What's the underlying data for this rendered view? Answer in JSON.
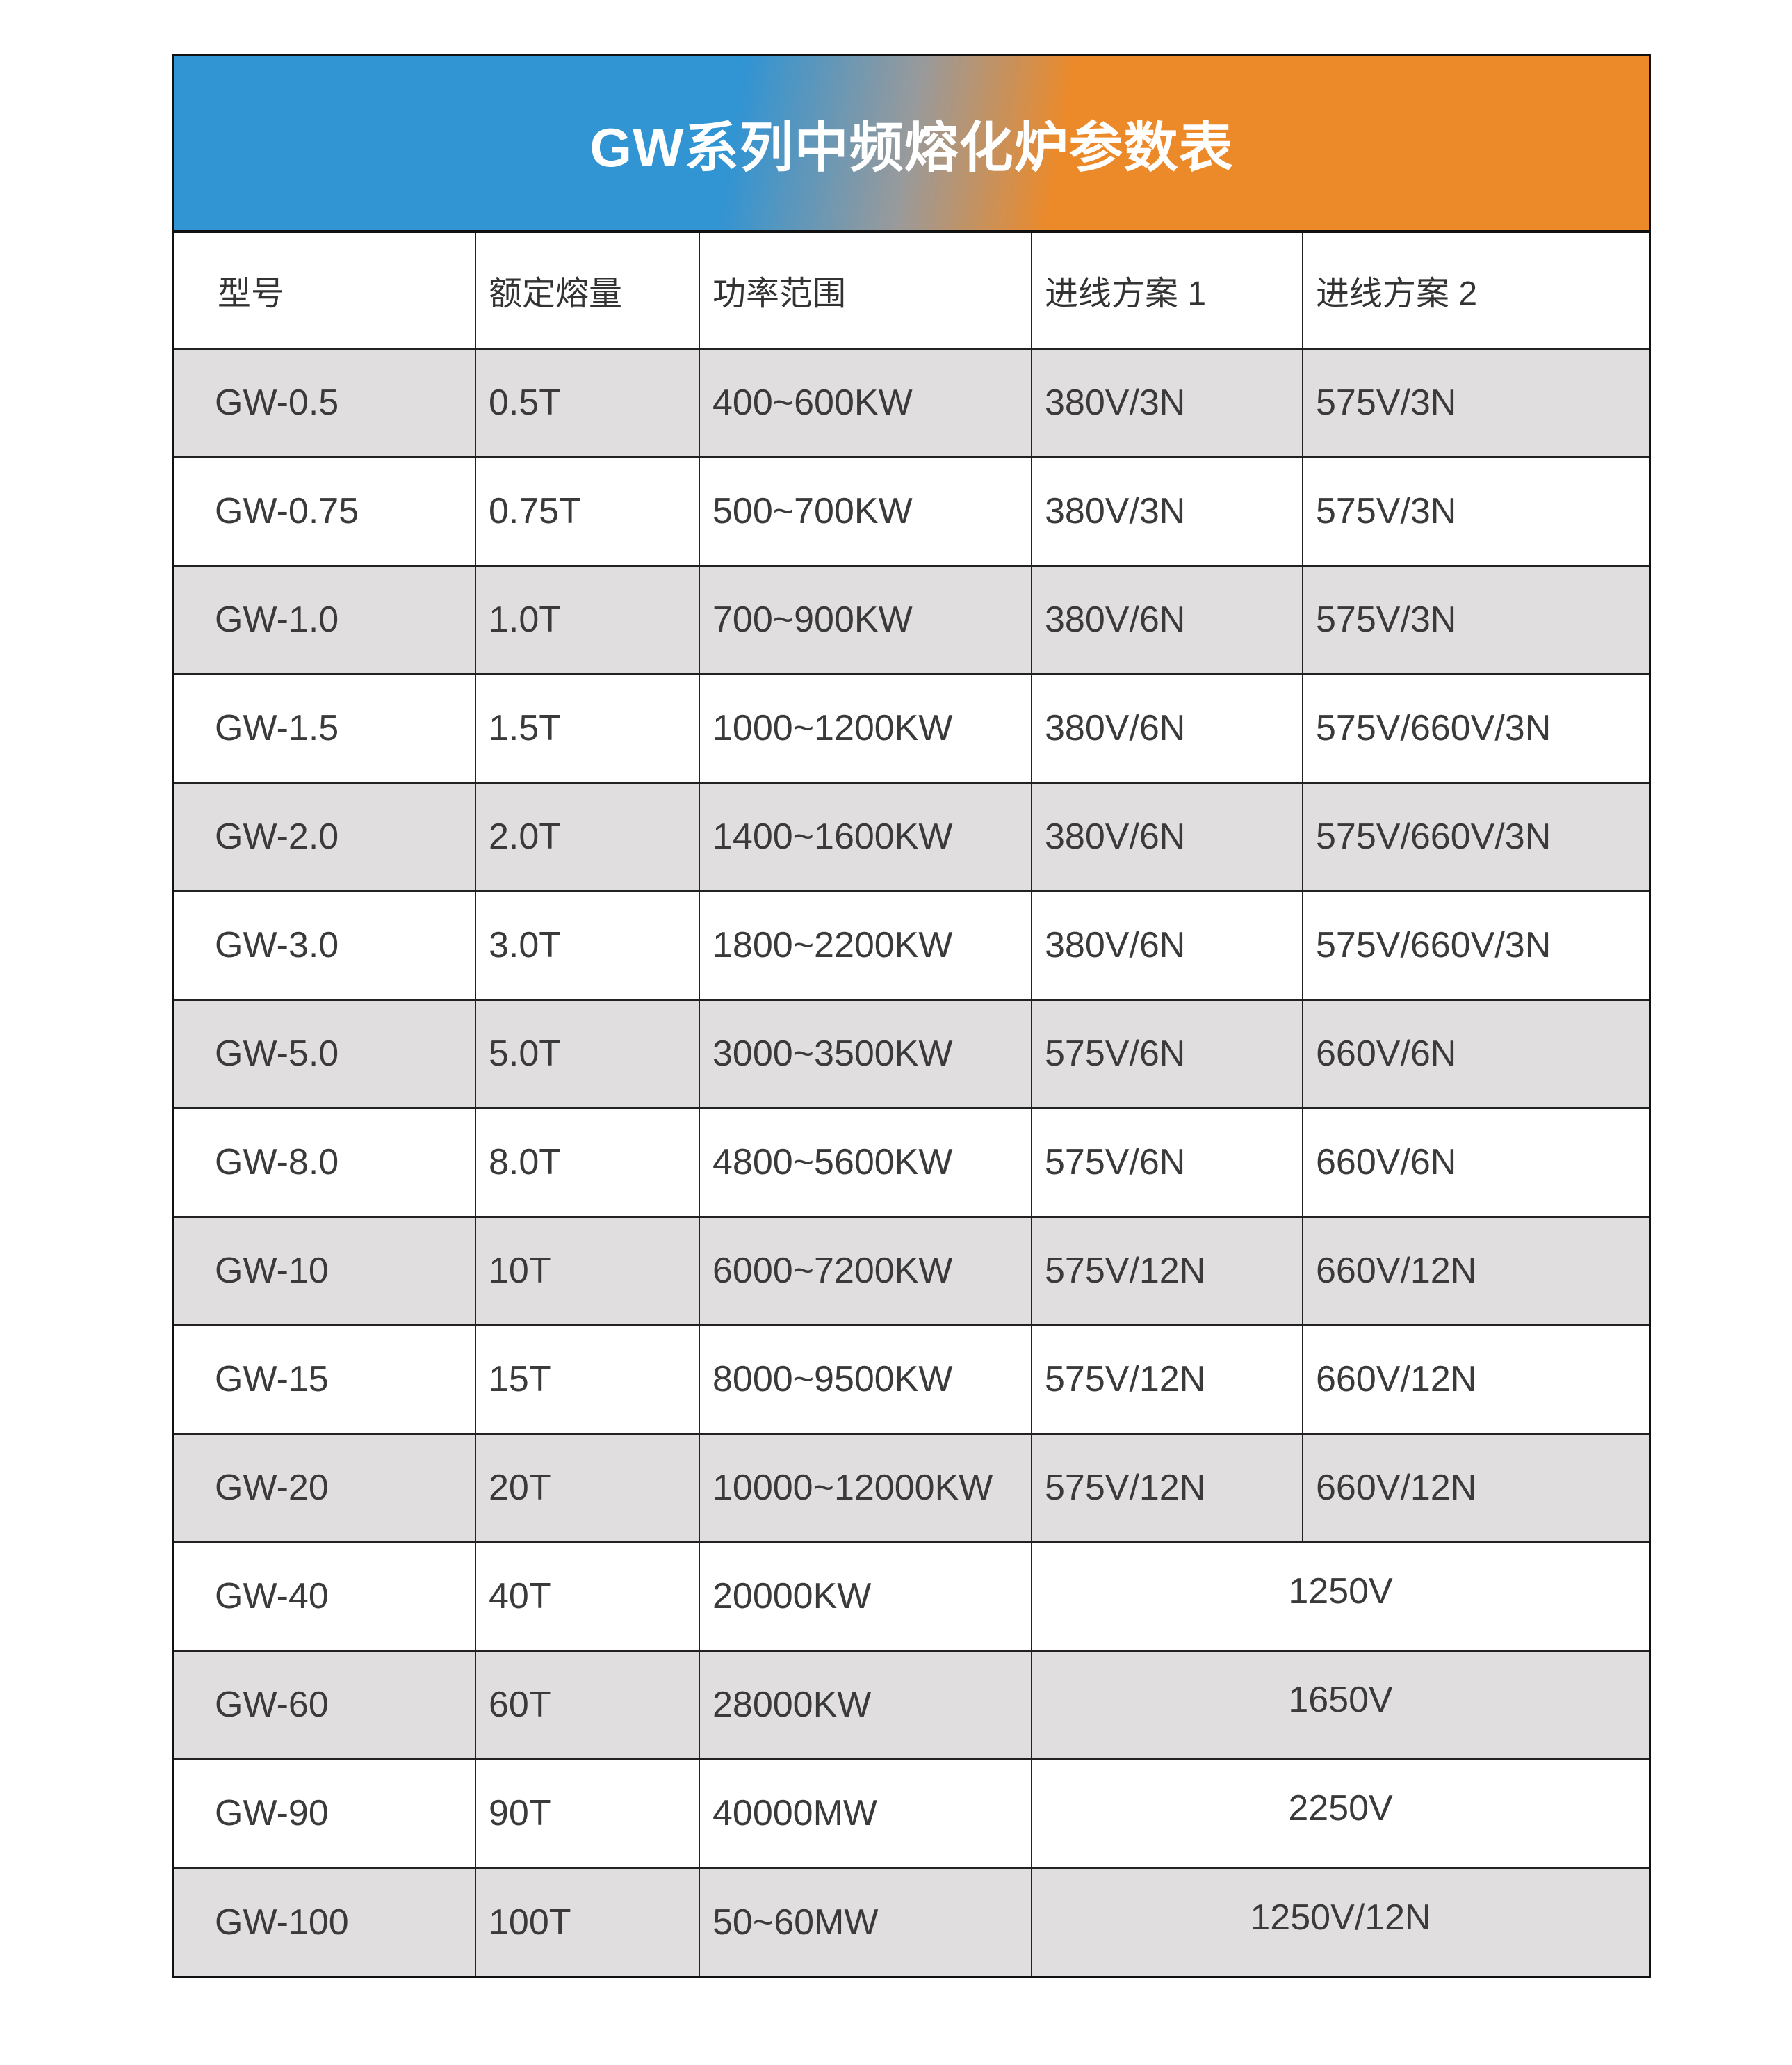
{
  "title": "GW系列中频熔化炉参数表",
  "colors": {
    "banner_left": "#3194d3",
    "banner_right": "#ec8a2a",
    "row_shade": "#e0dede"
  },
  "columns": [
    "型号",
    "额定熔量",
    "功率范围",
    "进线方案 1",
    "进线方案 2"
  ],
  "rows": [
    {
      "model": "GW-0.5",
      "capacity": "0.5T",
      "power": "400~600KW",
      "inlet1": "380V/3N",
      "inlet2": "575V/3N"
    },
    {
      "model": "GW-0.75",
      "capacity": "0.75T",
      "power": "500~700KW",
      "inlet1": "380V/3N",
      "inlet2": "575V/3N"
    },
    {
      "model": "GW-1.0",
      "capacity": "1.0T",
      "power": "700~900KW",
      "inlet1": "380V/6N",
      "inlet2": "575V/3N"
    },
    {
      "model": "GW-1.5",
      "capacity": "1.5T",
      "power": "1000~1200KW",
      "inlet1": "380V/6N",
      "inlet2": "575V/660V/3N"
    },
    {
      "model": "GW-2.0",
      "capacity": "2.0T",
      "power": "1400~1600KW",
      "inlet1": "380V/6N",
      "inlet2": "575V/660V/3N"
    },
    {
      "model": "GW-3.0",
      "capacity": "3.0T",
      "power": "1800~2200KW",
      "inlet1": "380V/6N",
      "inlet2": "575V/660V/3N"
    },
    {
      "model": "GW-5.0",
      "capacity": "5.0T",
      "power": "3000~3500KW",
      "inlet1": "575V/6N",
      "inlet2": "660V/6N"
    },
    {
      "model": "GW-8.0",
      "capacity": "8.0T",
      "power": "4800~5600KW",
      "inlet1": "575V/6N",
      "inlet2": "660V/6N"
    },
    {
      "model": "GW-10",
      "capacity": "10T",
      "power": "6000~7200KW",
      "inlet1": "575V/12N",
      "inlet2": "660V/12N"
    },
    {
      "model": "GW-15",
      "capacity": "15T",
      "power": "8000~9500KW",
      "inlet1": "575V/12N",
      "inlet2": "660V/12N"
    },
    {
      "model": "GW-20",
      "capacity": "20T",
      "power": "10000~12000KW",
      "inlet1": "575V/12N",
      "inlet2": "660V/12N"
    },
    {
      "model": "GW-40",
      "capacity": "40T",
      "power": "20000KW",
      "inlet": "1250V"
    },
    {
      "model": "GW-60",
      "capacity": "60T",
      "power": "28000KW",
      "inlet": "1650V"
    },
    {
      "model": "GW-90",
      "capacity": "90T",
      "power": "40000MW",
      "inlet": "2250V"
    },
    {
      "model": "GW-100",
      "capacity": "100T",
      "power": "50~60MW",
      "inlet": "1250V/12N"
    }
  ]
}
